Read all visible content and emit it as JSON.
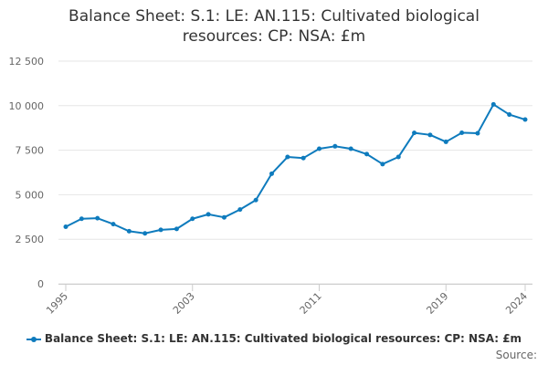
{
  "chart_data": {
    "type": "line",
    "title_lines": [
      "Balance Sheet: S.1: LE: AN.115: Cultivated biological",
      "resources: CP: NSA: £m"
    ],
    "xlabel": "",
    "ylabel": "",
    "xlim": [
      1995,
      2024
    ],
    "ylim": [
      0,
      12500
    ],
    "x_ticks": [
      "1995",
      "2003",
      "2011",
      "2019",
      "2024"
    ],
    "y_ticks": [
      "0",
      "2 500",
      "5 000",
      "7 500",
      "10 000",
      "12 500"
    ],
    "grid": "horizontal",
    "legend_position": "bottom",
    "series": [
      {
        "name": "Balance Sheet: S.1: LE: AN.115: Cultivated biological resources: CP: NSA: £m",
        "color": "#0e7bbd",
        "x": [
          1995,
          1996,
          1997,
          1998,
          1999,
          2000,
          2001,
          2002,
          2003,
          2004,
          2005,
          2006,
          2007,
          2008,
          2009,
          2010,
          2011,
          2012,
          2013,
          2014,
          2015,
          2016,
          2017,
          2018,
          2019,
          2020,
          2021,
          2022,
          2023,
          2024
        ],
        "values": [
          3200,
          3650,
          3680,
          3350,
          2950,
          2830,
          3030,
          3080,
          3650,
          3900,
          3730,
          4170,
          4700,
          6180,
          7120,
          7060,
          7580,
          7720,
          7580,
          7280,
          6720,
          7120,
          8470,
          8360,
          7970,
          8480,
          8450,
          10070,
          9500,
          9220
        ]
      }
    ]
  },
  "source_label": "Source:"
}
